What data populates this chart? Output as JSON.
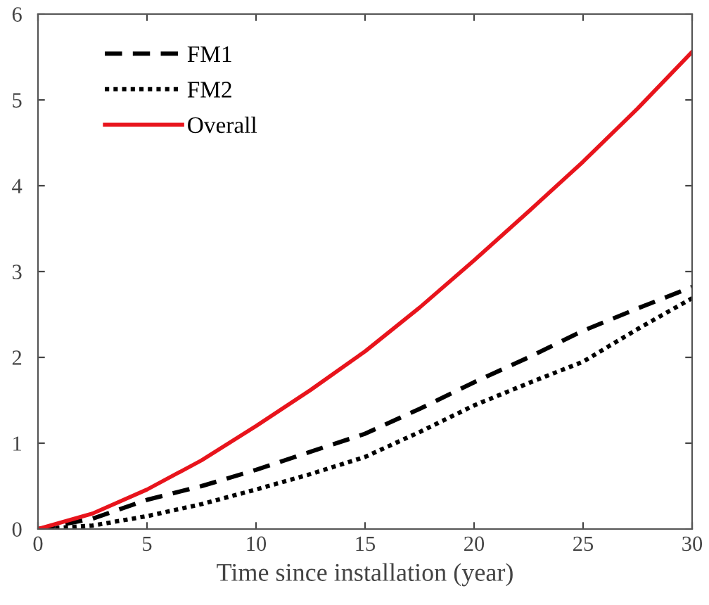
{
  "chart_data": {
    "type": "line",
    "xlabel": "Time since installation (year)",
    "x": [
      0,
      2.5,
      5,
      7.5,
      10,
      12.5,
      15,
      17.5,
      20,
      22.5,
      25,
      27.5,
      30
    ],
    "series": [
      {
        "name": "FM1",
        "color": "#000000",
        "line_style": "dashed",
        "values": [
          0,
          0.12,
          0.34,
          0.5,
          0.69,
          0.9,
          1.11,
          1.4,
          1.71,
          2.0,
          2.31,
          2.57,
          2.82
        ]
      },
      {
        "name": "FM2",
        "color": "#000000",
        "line_style": "dotted",
        "values": [
          0,
          0.04,
          0.15,
          0.29,
          0.46,
          0.64,
          0.84,
          1.13,
          1.44,
          1.7,
          1.95,
          2.33,
          2.69
        ]
      },
      {
        "name": "Overall",
        "color": "#e8141c",
        "line_style": "solid",
        "values": [
          0,
          0.18,
          0.46,
          0.8,
          1.2,
          1.62,
          2.07,
          2.58,
          3.13,
          3.7,
          4.28,
          4.9,
          5.56
        ]
      }
    ],
    "xlim": [
      0,
      30
    ],
    "ylim": [
      0,
      6
    ],
    "xticks": [
      0,
      5,
      10,
      15,
      20,
      25,
      30
    ],
    "yticks": [
      0,
      1,
      2,
      3,
      4,
      5,
      6
    ],
    "legend": "top left",
    "grid": false,
    "marker": "none"
  }
}
